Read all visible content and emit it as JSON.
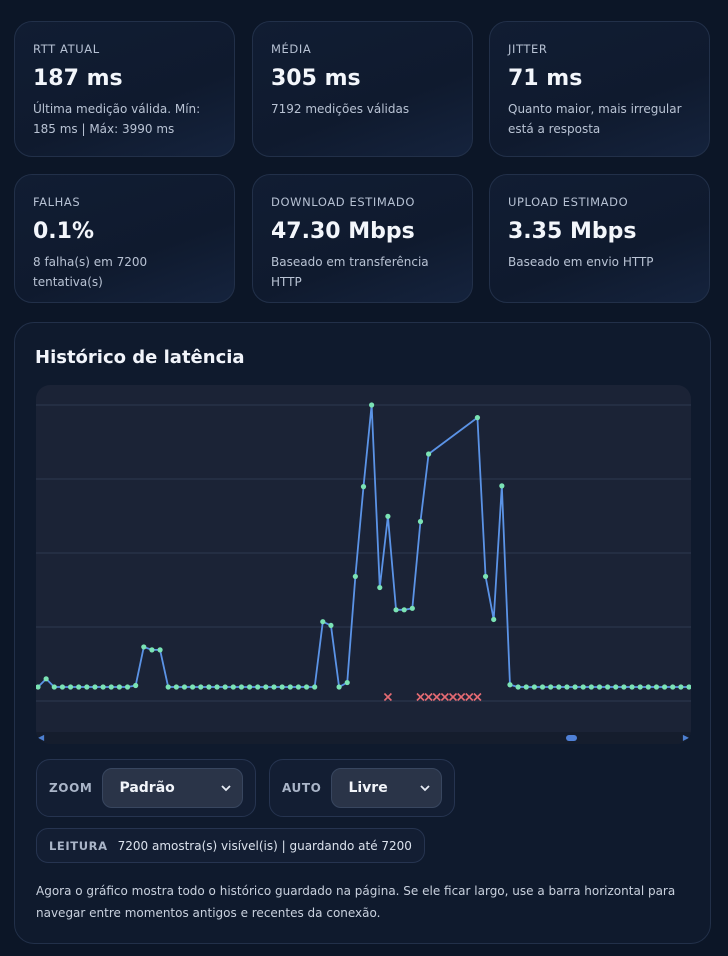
{
  "stats": [
    {
      "label": "RTT ATUAL",
      "value": "187 ms",
      "sub": "Última medição válida. Mín: 185 ms | Máx: 3990 ms"
    },
    {
      "label": "MÉDIA",
      "value": "305 ms",
      "sub": "7192 medições válidas"
    },
    {
      "label": "JITTER",
      "value": "71 ms",
      "sub": "Quanto maior, mais irregular está a resposta"
    },
    {
      "label": "FALHAS",
      "value": "0.1%",
      "sub": "8 falha(s) em 7200 tentativa(s)"
    },
    {
      "label": "DOWNLOAD ESTIMADO",
      "value": "47.30 Mbps",
      "sub": "Baseado em transferência HTTP"
    },
    {
      "label": "UPLOAD ESTIMADO",
      "value": "3.35 Mbps",
      "sub": "Baseado em envio HTTP"
    }
  ],
  "panel": {
    "title": "Histórico de latência",
    "zoom_label": "ZOOM",
    "zoom_value": "Padrão",
    "auto_label": "AUTO",
    "auto_value": "Livre",
    "reading_label": "LEITURA",
    "reading_value": "7200 amostra(s) visível(is) | guardando até 7200",
    "note": "Agora o gráfico mostra todo o histórico guardado na página. Se ele ficar largo, use a barra horizontal para navegar entre momentos antigos e recentes da conexão."
  },
  "colors": {
    "line": "#5b93e6",
    "point": "#7be3b4",
    "failure": "#e46b73",
    "grid": "#2c3850"
  },
  "chart_data": {
    "type": "line",
    "title": "Histórico de latência",
    "xlabel": "",
    "ylabel": "",
    "y_axis_labels_shown": false,
    "ylim": [
      0,
      4200
    ],
    "grid": true,
    "series": [
      {
        "points": [
          [
            1,
            190
          ],
          [
            2,
            300
          ],
          [
            3,
            190
          ],
          [
            4,
            190
          ],
          [
            5,
            190
          ],
          [
            6,
            190
          ],
          [
            7,
            190
          ],
          [
            8,
            190
          ],
          [
            9,
            190
          ],
          [
            10,
            190
          ],
          [
            11,
            190
          ],
          [
            12,
            190
          ],
          [
            13,
            210
          ],
          [
            14,
            730
          ],
          [
            15,
            690
          ],
          [
            16,
            690
          ],
          [
            17,
            190
          ],
          [
            18,
            190
          ],
          [
            19,
            190
          ],
          [
            20,
            190
          ],
          [
            21,
            190
          ],
          [
            22,
            190
          ],
          [
            23,
            190
          ],
          [
            24,
            190
          ],
          [
            25,
            190
          ],
          [
            26,
            190
          ],
          [
            27,
            190
          ],
          [
            28,
            190
          ],
          [
            29,
            190
          ],
          [
            30,
            190
          ],
          [
            31,
            190
          ],
          [
            32,
            190
          ],
          [
            33,
            190
          ],
          [
            34,
            190
          ],
          [
            35,
            190
          ],
          [
            36,
            1070
          ],
          [
            37,
            1020
          ],
          [
            38,
            190
          ],
          [
            39,
            250
          ],
          [
            40,
            1680
          ],
          [
            41,
            2890
          ],
          [
            42,
            3990
          ],
          [
            43,
            1530
          ],
          [
            44,
            2490
          ],
          [
            45,
            1230
          ],
          [
            46,
            1230
          ],
          [
            47,
            1250
          ],
          [
            48,
            2420
          ],
          [
            49,
            3330
          ],
          [
            55,
            3820
          ],
          [
            56,
            1680
          ],
          [
            57,
            1100
          ],
          [
            58,
            2900
          ],
          [
            59,
            220
          ],
          [
            60,
            190
          ],
          [
            61,
            190
          ],
          [
            62,
            190
          ],
          [
            63,
            190
          ],
          [
            64,
            190
          ],
          [
            65,
            190
          ],
          [
            66,
            190
          ],
          [
            67,
            190
          ],
          [
            68,
            190
          ],
          [
            69,
            190
          ],
          [
            70,
            190
          ],
          [
            71,
            190
          ],
          [
            72,
            190
          ],
          [
            73,
            190
          ],
          [
            74,
            190
          ],
          [
            75,
            190
          ],
          [
            76,
            190
          ],
          [
            77,
            190
          ],
          [
            78,
            190
          ],
          [
            79,
            190
          ],
          [
            80,
            190
          ],
          [
            81,
            190
          ]
        ]
      }
    ],
    "failures": [
      44,
      48,
      49,
      50,
      51,
      52,
      53,
      54,
      55
    ]
  }
}
